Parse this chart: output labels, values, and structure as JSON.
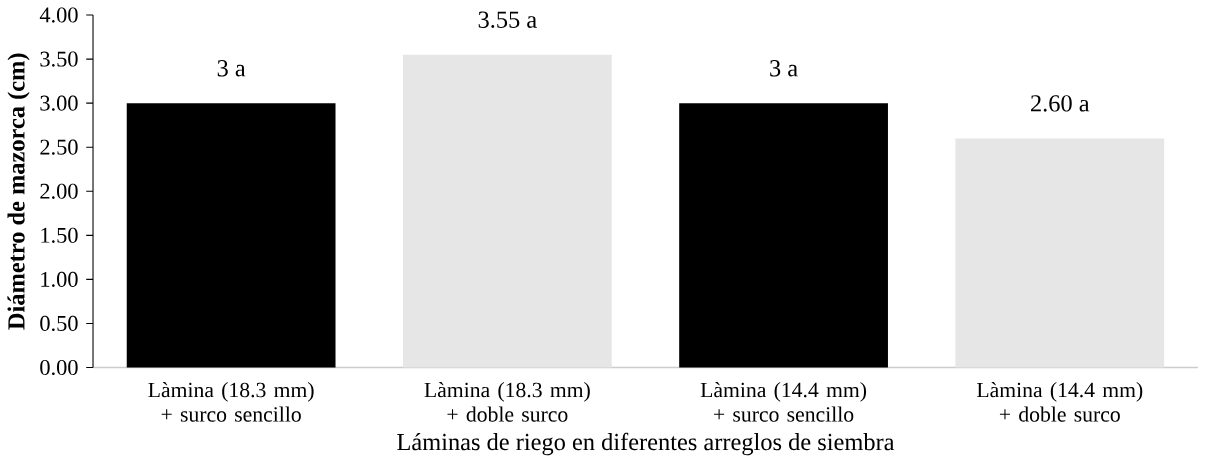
{
  "chart_data": {
    "type": "bar",
    "xlabel": "Láminas de riego en diferentes arreglos de siembra",
    "ylabel": "Diámetro de mazorca (cm)",
    "categories": [
      "Làmina (18.3 mm) + surco sencillo",
      "Làmina (18.3 mm) + doble surco",
      "Làmina (14.4 mm) + surco sencillo",
      "Làmina (14.4 mm) + doble surco"
    ],
    "values": [
      3,
      3.55,
      3,
      2.6
    ],
    "value_labels": [
      "3 a",
      "3.55 a",
      "3 a",
      "2.60 a"
    ],
    "colors": [
      "#000000",
      "#e6e6e6",
      "#000000",
      "#e6e6e6"
    ],
    "ylim": [
      0,
      4
    ],
    "yticks": [
      {
        "value": 0,
        "label": "0.00"
      },
      {
        "value": 0.5,
        "label": "0.50"
      },
      {
        "value": 1,
        "label": "1.00"
      },
      {
        "value": 1.5,
        "label": "1.50"
      },
      {
        "value": 2,
        "label": "2.00"
      },
      {
        "value": 2.5,
        "label": "2.50"
      },
      {
        "value": 3,
        "label": "3.00"
      },
      {
        "value": 3.5,
        "label": "3.50"
      },
      {
        "value": 4,
        "label": "4.00"
      }
    ]
  }
}
